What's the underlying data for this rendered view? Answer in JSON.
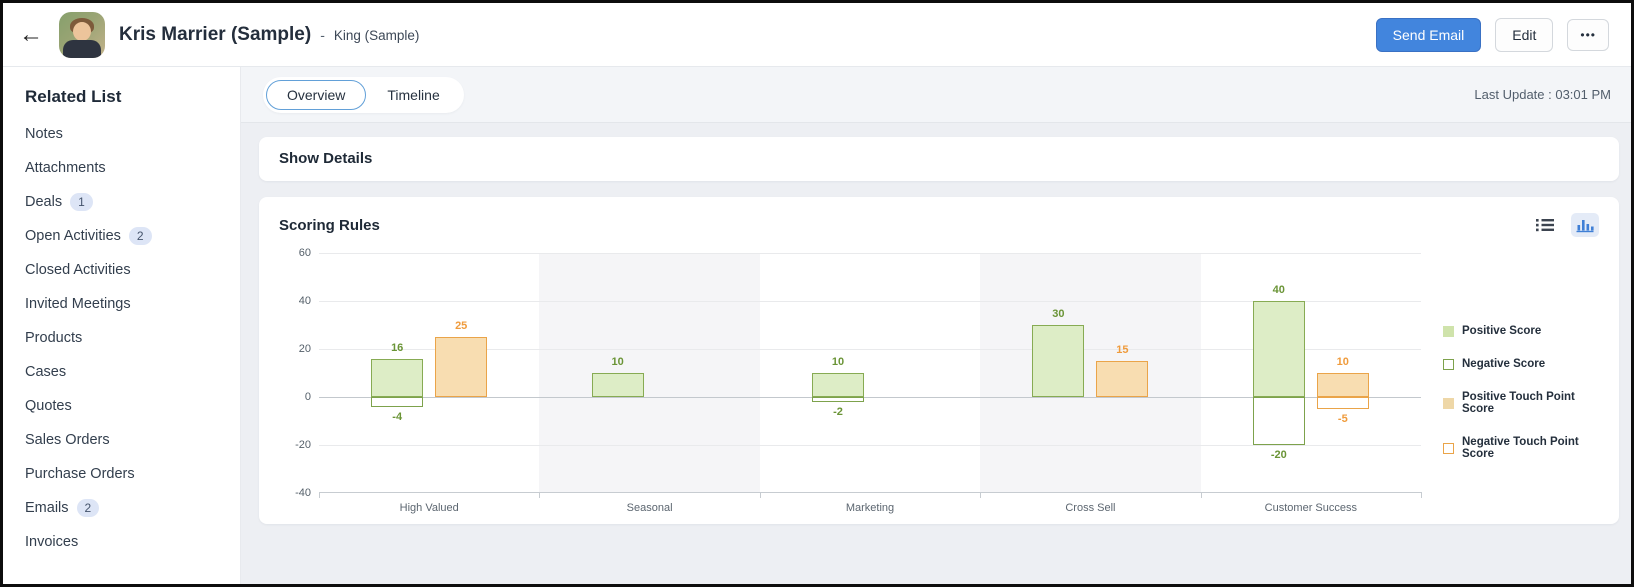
{
  "header": {
    "contact_name": "Kris Marrier (Sample)",
    "separator": "-",
    "account_name": "King (Sample)",
    "send_email_label": "Send Email",
    "edit_label": "Edit",
    "more_label": "•••"
  },
  "sidebar": {
    "title": "Related List",
    "items": [
      {
        "label": "Notes"
      },
      {
        "label": "Attachments"
      },
      {
        "label": "Deals",
        "badge": "1"
      },
      {
        "label": "Open Activities",
        "badge": "2"
      },
      {
        "label": "Closed Activities"
      },
      {
        "label": "Invited Meetings"
      },
      {
        "label": "Products"
      },
      {
        "label": "Cases"
      },
      {
        "label": "Quotes"
      },
      {
        "label": "Sales Orders"
      },
      {
        "label": "Purchase Orders"
      },
      {
        "label": "Emails",
        "badge": "2"
      },
      {
        "label": "Invoices"
      }
    ]
  },
  "tabs": {
    "overview": "Overview",
    "timeline": "Timeline",
    "last_update": "Last Update : 03:01 PM"
  },
  "sections": {
    "show_details": "Show Details",
    "scoring_rules": "Scoring Rules"
  },
  "colors": {
    "accent_blue": "#4285dd",
    "positive_green_fill": "#ddedc6",
    "green_border": "#87ab53",
    "positive_orange_fill": "#f8ddb1",
    "orange_border": "#eaa449",
    "green_label": "#6a9436",
    "orange_label": "#ef9b3c",
    "badge_bg": "#dde5f6",
    "band_shade": "#f5f5f7"
  },
  "chart_data": {
    "type": "bar",
    "title": "Scoring Rules",
    "categories": [
      "High Valued",
      "Seasonal",
      "Marketing",
      "Cross Sell",
      "Customer Success"
    ],
    "series": [
      {
        "name": "Positive Score",
        "style": "green-fill",
        "label_color": "green",
        "values": [
          16,
          10,
          10,
          30,
          40
        ]
      },
      {
        "name": "Negative Score",
        "style": "green-outline",
        "label_color": "green",
        "values": [
          -4,
          null,
          -2,
          null,
          -20
        ]
      },
      {
        "name": "Positive Touch Point Score",
        "style": "orange-fill",
        "label_color": "orange",
        "values": [
          25,
          null,
          null,
          15,
          10
        ]
      },
      {
        "name": "Negative Touch Point Score",
        "style": "orange-outline",
        "label_color": "orange",
        "values": [
          null,
          null,
          null,
          null,
          -5
        ]
      }
    ],
    "ylim": [
      -40,
      60
    ],
    "yticks": [
      60,
      40,
      20,
      0,
      -20,
      -40
    ],
    "xlabel": "",
    "ylabel": "",
    "grid": true,
    "band_shading": "alternate",
    "legend_position": "right"
  }
}
